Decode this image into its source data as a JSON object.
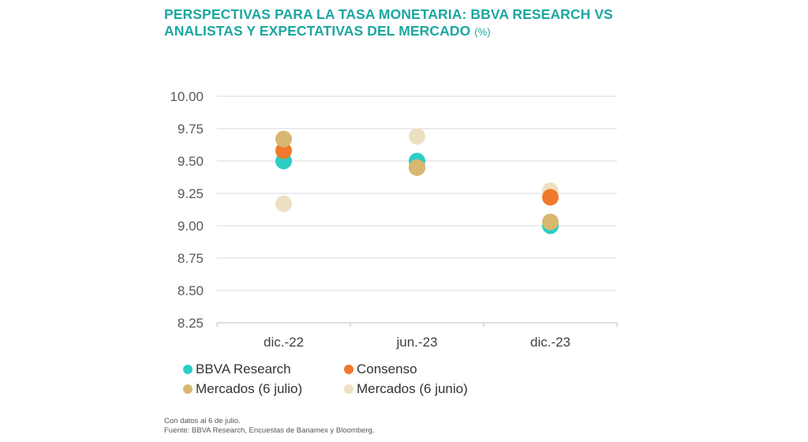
{
  "title": {
    "main": "PERSPECTIVAS PARA LA TASA MONETARIA: BBVA RESEARCH VS ANALISTAS Y EXPECTATIVAS DEL MERCADO",
    "unit": "(%)"
  },
  "chart_data": {
    "type": "scatter",
    "title": "PERSPECTIVAS PARA LA TASA MONETARIA: BBVA RESEARCH VS ANALISTAS Y EXPECTATIVAS DEL MERCADO (%)",
    "categories": [
      "dic.-22",
      "jun.-23",
      "dic.-23"
    ],
    "ylim": [
      8.25,
      10.0
    ],
    "yticks": [
      10.0,
      9.75,
      9.5,
      9.25,
      9.0,
      8.75,
      8.5,
      8.25
    ],
    "ytick_labels": [
      "10.00",
      "9.75",
      "9.50",
      "9.25",
      "9.00",
      "8.75",
      "8.50",
      "8.25"
    ],
    "grid": true,
    "legend_position": "bottom-left",
    "series": [
      {
        "name": "Mercados (6 junio)",
        "color": "#ede0c2",
        "values": [
          9.17,
          9.69,
          9.27
        ]
      },
      {
        "name": "BBVA Research",
        "color": "#2ccdc4",
        "values": [
          9.5,
          9.5,
          9.0
        ]
      },
      {
        "name": "Consenso",
        "color": "#f07a2c",
        "values": [
          9.58,
          9.45,
          9.22
        ]
      },
      {
        "name": "Mercados (6 julio)",
        "color": "#d8b771",
        "values": [
          9.67,
          9.45,
          9.03
        ]
      }
    ]
  },
  "legend": {
    "items": [
      {
        "label": "BBVA Research",
        "color": "#2ccdc4"
      },
      {
        "label": "Consenso",
        "color": "#f07a2c"
      },
      {
        "label": "Mercados (6 julio)",
        "color": "#d8b771"
      },
      {
        "label": "Mercados (6 junio)",
        "color": "#ede0c2"
      }
    ]
  },
  "notes": {
    "line1": "Con datos al 6 de julio.",
    "line2": "Fuente: BBVA Research, Encuestas de Banamex y Bloomberg."
  }
}
